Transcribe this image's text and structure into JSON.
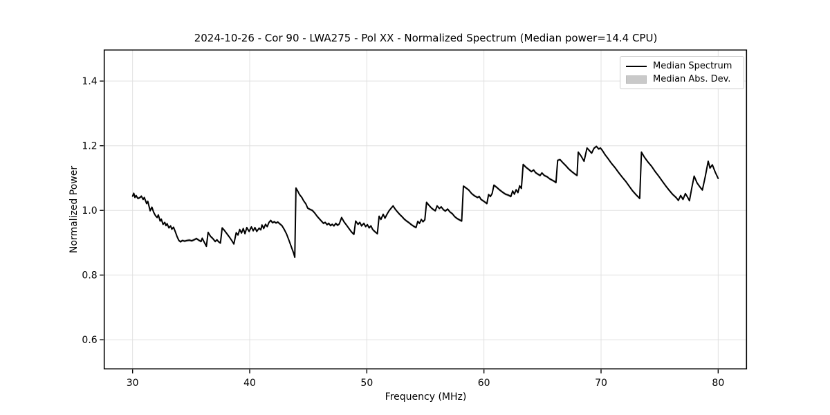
{
  "chart_data": {
    "type": "line",
    "title": "2024-10-26 - Cor 90 - LWA275 - Pol XX - Normalized Spectrum (Median power=14.4 CPU)",
    "xlabel": "Frequency (MHz)",
    "ylabel": "Normalized Power",
    "xlim": [
      27.58,
      82.42
    ],
    "ylim": [
      0.51,
      1.496
    ],
    "grid": true,
    "legend_position": "upper right",
    "legend": [
      {
        "label": "Median Spectrum",
        "swatch": "line"
      },
      {
        "label": "Median Abs. Dev.",
        "swatch": "patch"
      }
    ],
    "colors": {
      "line": "#000000",
      "band": "#c9c9c9",
      "grid": "#e0e0e0",
      "spine": "#000000"
    },
    "xticks": [
      {
        "v": 30,
        "label": "30"
      },
      {
        "v": 40,
        "label": "40"
      },
      {
        "v": 50,
        "label": "50"
      },
      {
        "v": 60,
        "label": "60"
      },
      {
        "v": 70,
        "label": "70"
      },
      {
        "v": 80,
        "label": "80"
      }
    ],
    "yticks": [
      {
        "v": 0.6,
        "label": "0.6"
      },
      {
        "v": 0.8,
        "label": "0.8"
      },
      {
        "v": 1.0,
        "label": "1.0"
      },
      {
        "v": 1.2,
        "label": "1.2"
      },
      {
        "v": 1.4,
        "label": "1.4"
      }
    ],
    "band_half_width": 0.004,
    "series": [
      {
        "name": "Median Spectrum",
        "points": [
          [
            30.0,
            1.044
          ],
          [
            30.1,
            1.053
          ],
          [
            30.2,
            1.04
          ],
          [
            30.3,
            1.046
          ],
          [
            30.45,
            1.037
          ],
          [
            30.6,
            1.039
          ],
          [
            30.75,
            1.044
          ],
          [
            30.9,
            1.034
          ],
          [
            31.0,
            1.04
          ],
          [
            31.2,
            1.021
          ],
          [
            31.3,
            1.028
          ],
          [
            31.5,
            0.999
          ],
          [
            31.65,
            1.01
          ],
          [
            31.8,
            0.994
          ],
          [
            31.95,
            0.984
          ],
          [
            32.1,
            0.978
          ],
          [
            32.2,
            0.986
          ],
          [
            32.35,
            0.967
          ],
          [
            32.45,
            0.973
          ],
          [
            32.6,
            0.957
          ],
          [
            32.75,
            0.963
          ],
          [
            32.85,
            0.953
          ],
          [
            32.95,
            0.959
          ],
          [
            33.1,
            0.946
          ],
          [
            33.25,
            0.952
          ],
          [
            33.35,
            0.942
          ],
          [
            33.5,
            0.948
          ],
          [
            33.65,
            0.934
          ],
          [
            33.8,
            0.919
          ],
          [
            33.95,
            0.907
          ],
          [
            34.1,
            0.903
          ],
          [
            34.25,
            0.907
          ],
          [
            34.45,
            0.905
          ],
          [
            34.65,
            0.907
          ],
          [
            34.85,
            0.908
          ],
          [
            35.05,
            0.906
          ],
          [
            35.25,
            0.909
          ],
          [
            35.45,
            0.913
          ],
          [
            35.65,
            0.908
          ],
          [
            35.85,
            0.904
          ],
          [
            35.95,
            0.914
          ],
          [
            36.1,
            0.903
          ],
          [
            36.3,
            0.889
          ],
          [
            36.45,
            0.932
          ],
          [
            36.65,
            0.92
          ],
          [
            36.85,
            0.913
          ],
          [
            37.05,
            0.904
          ],
          [
            37.2,
            0.909
          ],
          [
            37.35,
            0.903
          ],
          [
            37.5,
            0.899
          ],
          [
            37.65,
            0.946
          ],
          [
            37.8,
            0.94
          ],
          [
            38.05,
            0.928
          ],
          [
            38.3,
            0.916
          ],
          [
            38.5,
            0.905
          ],
          [
            38.65,
            0.896
          ],
          [
            38.85,
            0.931
          ],
          [
            39.0,
            0.924
          ],
          [
            39.15,
            0.941
          ],
          [
            39.3,
            0.93
          ],
          [
            39.45,
            0.944
          ],
          [
            39.6,
            0.928
          ],
          [
            39.75,
            0.947
          ],
          [
            39.95,
            0.935
          ],
          [
            40.15,
            0.949
          ],
          [
            40.3,
            0.937
          ],
          [
            40.45,
            0.947
          ],
          [
            40.6,
            0.935
          ],
          [
            40.8,
            0.945
          ],
          [
            40.95,
            0.94
          ],
          [
            41.05,
            0.955
          ],
          [
            41.2,
            0.944
          ],
          [
            41.35,
            0.957
          ],
          [
            41.5,
            0.95
          ],
          [
            41.65,
            0.963
          ],
          [
            41.8,
            0.969
          ],
          [
            41.95,
            0.962
          ],
          [
            42.1,
            0.965
          ],
          [
            42.25,
            0.961
          ],
          [
            42.4,
            0.964
          ],
          [
            42.55,
            0.959
          ],
          [
            42.75,
            0.953
          ],
          [
            42.95,
            0.941
          ],
          [
            43.15,
            0.927
          ],
          [
            43.35,
            0.908
          ],
          [
            43.55,
            0.888
          ],
          [
            43.75,
            0.868
          ],
          [
            43.85,
            0.855
          ],
          [
            43.95,
            1.069
          ],
          [
            44.1,
            1.06
          ],
          [
            44.25,
            1.049
          ],
          [
            44.45,
            1.04
          ],
          [
            44.6,
            1.03
          ],
          [
            44.8,
            1.02
          ],
          [
            44.95,
            1.007
          ],
          [
            45.15,
            1.003
          ],
          [
            45.35,
            1.0
          ],
          [
            45.55,
            0.992
          ],
          [
            45.75,
            0.982
          ],
          [
            45.95,
            0.974
          ],
          [
            46.15,
            0.966
          ],
          [
            46.3,
            0.96
          ],
          [
            46.45,
            0.963
          ],
          [
            46.6,
            0.956
          ],
          [
            46.75,
            0.96
          ],
          [
            46.9,
            0.953
          ],
          [
            47.05,
            0.957
          ],
          [
            47.2,
            0.952
          ],
          [
            47.35,
            0.96
          ],
          [
            47.5,
            0.954
          ],
          [
            47.65,
            0.958
          ],
          [
            47.85,
            0.978
          ],
          [
            48.05,
            0.965
          ],
          [
            48.3,
            0.953
          ],
          [
            48.5,
            0.943
          ],
          [
            48.7,
            0.933
          ],
          [
            48.9,
            0.926
          ],
          [
            49.05,
            0.967
          ],
          [
            49.25,
            0.957
          ],
          [
            49.4,
            0.963
          ],
          [
            49.55,
            0.952
          ],
          [
            49.75,
            0.96
          ],
          [
            49.9,
            0.95
          ],
          [
            50.05,
            0.956
          ],
          [
            50.2,
            0.946
          ],
          [
            50.35,
            0.952
          ],
          [
            50.5,
            0.941
          ],
          [
            50.7,
            0.934
          ],
          [
            50.9,
            0.928
          ],
          [
            51.05,
            0.982
          ],
          [
            51.2,
            0.972
          ],
          [
            51.4,
            0.988
          ],
          [
            51.55,
            0.976
          ],
          [
            51.75,
            0.99
          ],
          [
            51.9,
            0.999
          ],
          [
            52.1,
            1.008
          ],
          [
            52.25,
            1.014
          ],
          [
            52.4,
            1.005
          ],
          [
            52.6,
            0.996
          ],
          [
            52.8,
            0.988
          ],
          [
            53.0,
            0.981
          ],
          [
            53.2,
            0.973
          ],
          [
            53.4,
            0.967
          ],
          [
            53.6,
            0.962
          ],
          [
            53.8,
            0.956
          ],
          [
            54.0,
            0.951
          ],
          [
            54.2,
            0.947
          ],
          [
            54.35,
            0.966
          ],
          [
            54.5,
            0.96
          ],
          [
            54.65,
            0.972
          ],
          [
            54.8,
            0.965
          ],
          [
            54.95,
            0.971
          ],
          [
            55.1,
            1.025
          ],
          [
            55.3,
            1.016
          ],
          [
            55.5,
            1.008
          ],
          [
            55.7,
            1.002
          ],
          [
            55.85,
            0.999
          ],
          [
            56.0,
            1.014
          ],
          [
            56.2,
            1.006
          ],
          [
            56.35,
            1.011
          ],
          [
            56.55,
            1.002
          ],
          [
            56.7,
            0.998
          ],
          [
            56.9,
            1.004
          ],
          [
            57.1,
            0.995
          ],
          [
            57.3,
            0.99
          ],
          [
            57.5,
            0.981
          ],
          [
            57.7,
            0.975
          ],
          [
            57.9,
            0.971
          ],
          [
            58.1,
            0.967
          ],
          [
            58.25,
            1.075
          ],
          [
            58.45,
            1.07
          ],
          [
            58.7,
            1.063
          ],
          [
            58.95,
            1.052
          ],
          [
            59.2,
            1.045
          ],
          [
            59.45,
            1.04
          ],
          [
            59.6,
            1.043
          ],
          [
            59.75,
            1.034
          ],
          [
            60.0,
            1.028
          ],
          [
            60.25,
            1.021
          ],
          [
            60.4,
            1.049
          ],
          [
            60.55,
            1.043
          ],
          [
            60.7,
            1.052
          ],
          [
            60.85,
            1.078
          ],
          [
            61.1,
            1.071
          ],
          [
            61.35,
            1.063
          ],
          [
            61.6,
            1.056
          ],
          [
            61.85,
            1.05
          ],
          [
            62.1,
            1.047
          ],
          [
            62.3,
            1.043
          ],
          [
            62.45,
            1.06
          ],
          [
            62.6,
            1.05
          ],
          [
            62.75,
            1.064
          ],
          [
            62.9,
            1.055
          ],
          [
            63.05,
            1.076
          ],
          [
            63.2,
            1.068
          ],
          [
            63.35,
            1.142
          ],
          [
            63.6,
            1.133
          ],
          [
            63.85,
            1.126
          ],
          [
            64.05,
            1.12
          ],
          [
            64.25,
            1.125
          ],
          [
            64.4,
            1.117
          ],
          [
            64.6,
            1.112
          ],
          [
            64.8,
            1.108
          ],
          [
            64.95,
            1.116
          ],
          [
            65.15,
            1.108
          ],
          [
            65.4,
            1.104
          ],
          [
            65.6,
            1.098
          ],
          [
            65.8,
            1.094
          ],
          [
            66.0,
            1.09
          ],
          [
            66.15,
            1.086
          ],
          [
            66.3,
            1.155
          ],
          [
            66.5,
            1.157
          ],
          [
            66.75,
            1.147
          ],
          [
            67.0,
            1.138
          ],
          [
            67.25,
            1.128
          ],
          [
            67.5,
            1.12
          ],
          [
            67.75,
            1.113
          ],
          [
            67.95,
            1.108
          ],
          [
            68.05,
            1.18
          ],
          [
            68.3,
            1.168
          ],
          [
            68.55,
            1.152
          ],
          [
            68.8,
            1.193
          ],
          [
            69.0,
            1.185
          ],
          [
            69.2,
            1.177
          ],
          [
            69.4,
            1.192
          ],
          [
            69.6,
            1.198
          ],
          [
            69.8,
            1.19
          ],
          [
            69.95,
            1.193
          ],
          [
            70.1,
            1.186
          ],
          [
            70.35,
            1.172
          ],
          [
            70.6,
            1.16
          ],
          [
            70.9,
            1.145
          ],
          [
            71.2,
            1.132
          ],
          [
            71.5,
            1.117
          ],
          [
            71.8,
            1.103
          ],
          [
            72.1,
            1.09
          ],
          [
            72.4,
            1.075
          ],
          [
            72.7,
            1.06
          ],
          [
            73.0,
            1.048
          ],
          [
            73.3,
            1.037
          ],
          [
            73.45,
            1.18
          ],
          [
            73.7,
            1.165
          ],
          [
            74.0,
            1.15
          ],
          [
            74.3,
            1.137
          ],
          [
            74.6,
            1.121
          ],
          [
            74.9,
            1.107
          ],
          [
            75.2,
            1.092
          ],
          [
            75.5,
            1.077
          ],
          [
            75.8,
            1.063
          ],
          [
            76.1,
            1.05
          ],
          [
            76.4,
            1.04
          ],
          [
            76.6,
            1.031
          ],
          [
            76.8,
            1.046
          ],
          [
            77.0,
            1.034
          ],
          [
            77.2,
            1.052
          ],
          [
            77.4,
            1.04
          ],
          [
            77.55,
            1.03
          ],
          [
            77.75,
            1.07
          ],
          [
            77.95,
            1.106
          ],
          [
            78.2,
            1.085
          ],
          [
            78.45,
            1.072
          ],
          [
            78.65,
            1.063
          ],
          [
            78.9,
            1.105
          ],
          [
            79.15,
            1.152
          ],
          [
            79.3,
            1.131
          ],
          [
            79.5,
            1.141
          ],
          [
            79.75,
            1.118
          ],
          [
            80.0,
            1.099
          ]
        ]
      }
    ]
  }
}
